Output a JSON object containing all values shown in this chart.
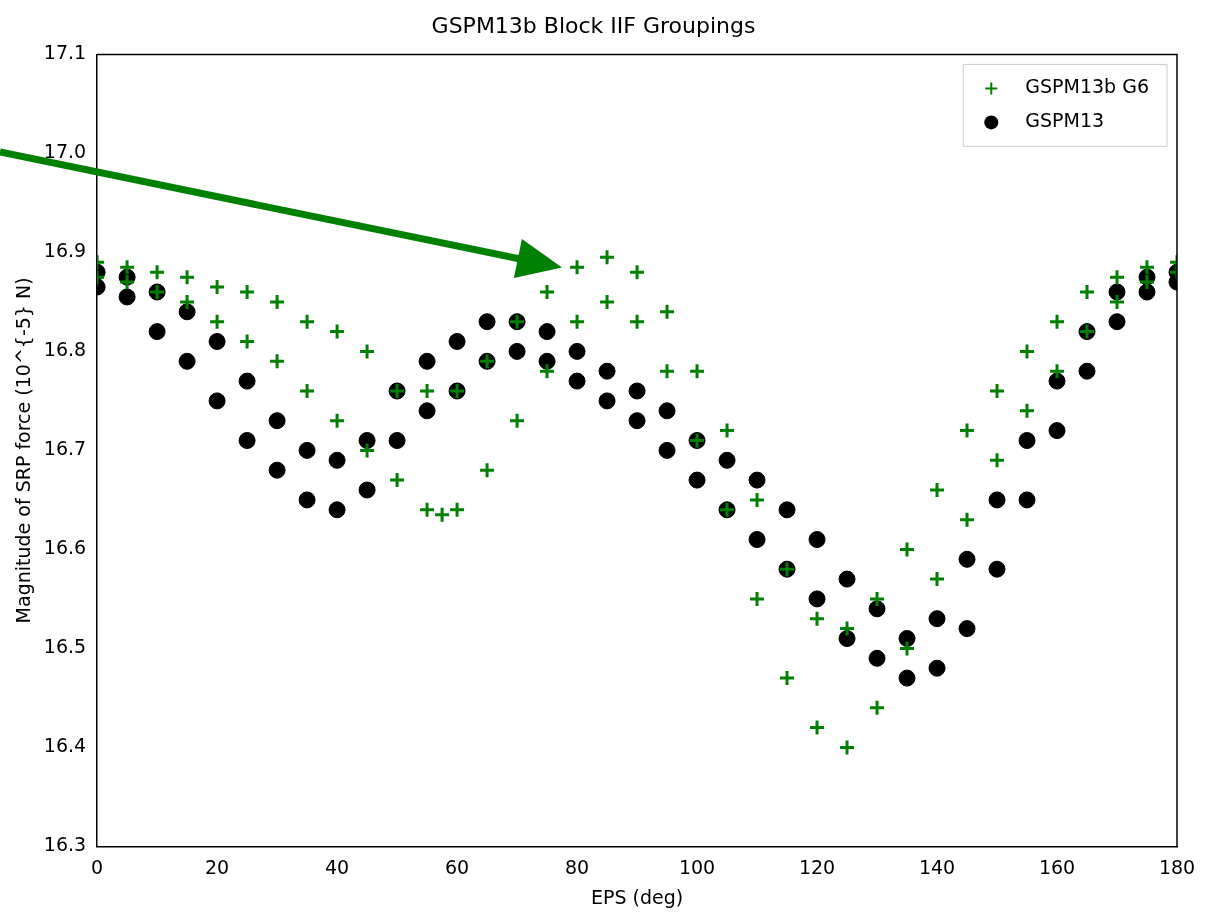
{
  "chart_data": {
    "type": "scatter",
    "title": "GSPM13b Block IIF Groupings",
    "xlabel": "EPS (deg)",
    "ylabel": "Magnitude of SRP force (10^{-5} N)",
    "xlim": [
      0,
      180
    ],
    "xticks": [
      0,
      20,
      40,
      60,
      80,
      100,
      120,
      140,
      160,
      180
    ],
    "ylim": [
      16.3,
      17.1
    ],
    "yticks": [
      16.3,
      16.4,
      16.5,
      16.6,
      16.7,
      16.8,
      16.9,
      {
        "value": 17,
        "label": "17.0"
      },
      17.1
    ],
    "grid": false,
    "legend": "top right",
    "series": [
      {
        "name": "GSPM13b G6",
        "color": "#008000",
        "marker": "cross",
        "x": [
          0,
          0,
          5,
          5,
          10,
          10,
          15,
          15,
          20,
          20,
          25,
          25,
          30,
          30,
          35,
          35,
          40,
          40,
          45,
          45,
          50,
          50,
          55,
          55,
          57.5,
          60,
          60,
          65,
          65,
          70,
          70,
          75,
          75,
          80,
          80,
          85,
          85,
          90,
          90,
          95,
          95,
          100,
          100,
          105,
          105,
          110,
          110,
          115,
          115,
          120,
          120,
          125,
          125,
          130,
          130,
          135,
          135,
          140,
          140,
          145,
          145,
          150,
          150,
          155,
          155,
          160,
          160,
          165,
          165,
          170,
          170,
          175,
          175,
          180,
          180
        ],
        "values": [
          16.875,
          16.89,
          16.87,
          16.885,
          16.86,
          16.88,
          16.85,
          16.875,
          16.83,
          16.865,
          16.81,
          16.86,
          16.79,
          16.85,
          16.76,
          16.83,
          16.73,
          16.82,
          16.7,
          16.8,
          16.67,
          16.76,
          16.64,
          16.76,
          16.635,
          16.64,
          16.76,
          16.68,
          16.79,
          16.73,
          16.83,
          16.78,
          16.86,
          16.83,
          16.885,
          16.85,
          16.895,
          16.83,
          16.88,
          16.78,
          16.84,
          16.71,
          16.78,
          16.64,
          16.72,
          16.55,
          16.65,
          16.47,
          16.58,
          16.42,
          16.53,
          16.4,
          16.52,
          16.44,
          16.55,
          16.5,
          16.6,
          16.57,
          16.66,
          16.63,
          16.72,
          16.69,
          16.76,
          16.74,
          16.8,
          16.78,
          16.83,
          16.82,
          16.86,
          16.85,
          16.875,
          16.87,
          16.885,
          16.88,
          16.89
        ]
      },
      {
        "name": "GSPM13",
        "color": "#000000",
        "marker": "circle",
        "x": [
          0,
          0,
          5,
          5,
          10,
          10,
          15,
          15,
          20,
          20,
          25,
          25,
          30,
          30,
          35,
          35,
          40,
          40,
          45,
          45,
          50,
          50,
          55,
          55,
          60,
          60,
          65,
          65,
          70,
          70,
          75,
          75,
          80,
          80,
          85,
          85,
          90,
          90,
          95,
          95,
          100,
          100,
          105,
          105,
          110,
          110,
          115,
          115,
          120,
          120,
          125,
          125,
          130,
          130,
          135,
          135,
          140,
          140,
          145,
          145,
          150,
          150,
          155,
          155,
          160,
          160,
          165,
          165,
          170,
          170,
          175,
          175,
          180,
          180
        ],
        "values": [
          16.865,
          16.88,
          16.855,
          16.875,
          16.82,
          16.86,
          16.79,
          16.84,
          16.75,
          16.81,
          16.71,
          16.77,
          16.68,
          16.73,
          16.65,
          16.7,
          16.64,
          16.69,
          16.66,
          16.71,
          16.71,
          16.76,
          16.74,
          16.79,
          16.76,
          16.81,
          16.79,
          16.83,
          16.8,
          16.83,
          16.79,
          16.82,
          16.77,
          16.8,
          16.75,
          16.78,
          16.73,
          16.76,
          16.7,
          16.74,
          16.67,
          16.71,
          16.64,
          16.69,
          16.61,
          16.67,
          16.58,
          16.64,
          16.55,
          16.61,
          16.51,
          16.57,
          16.49,
          16.54,
          16.47,
          16.51,
          16.48,
          16.53,
          16.52,
          16.59,
          16.58,
          16.65,
          16.65,
          16.71,
          16.72,
          16.77,
          16.78,
          16.82,
          16.83,
          16.86,
          16.86,
          16.875,
          16.87,
          16.88
        ]
      }
    ]
  }
}
